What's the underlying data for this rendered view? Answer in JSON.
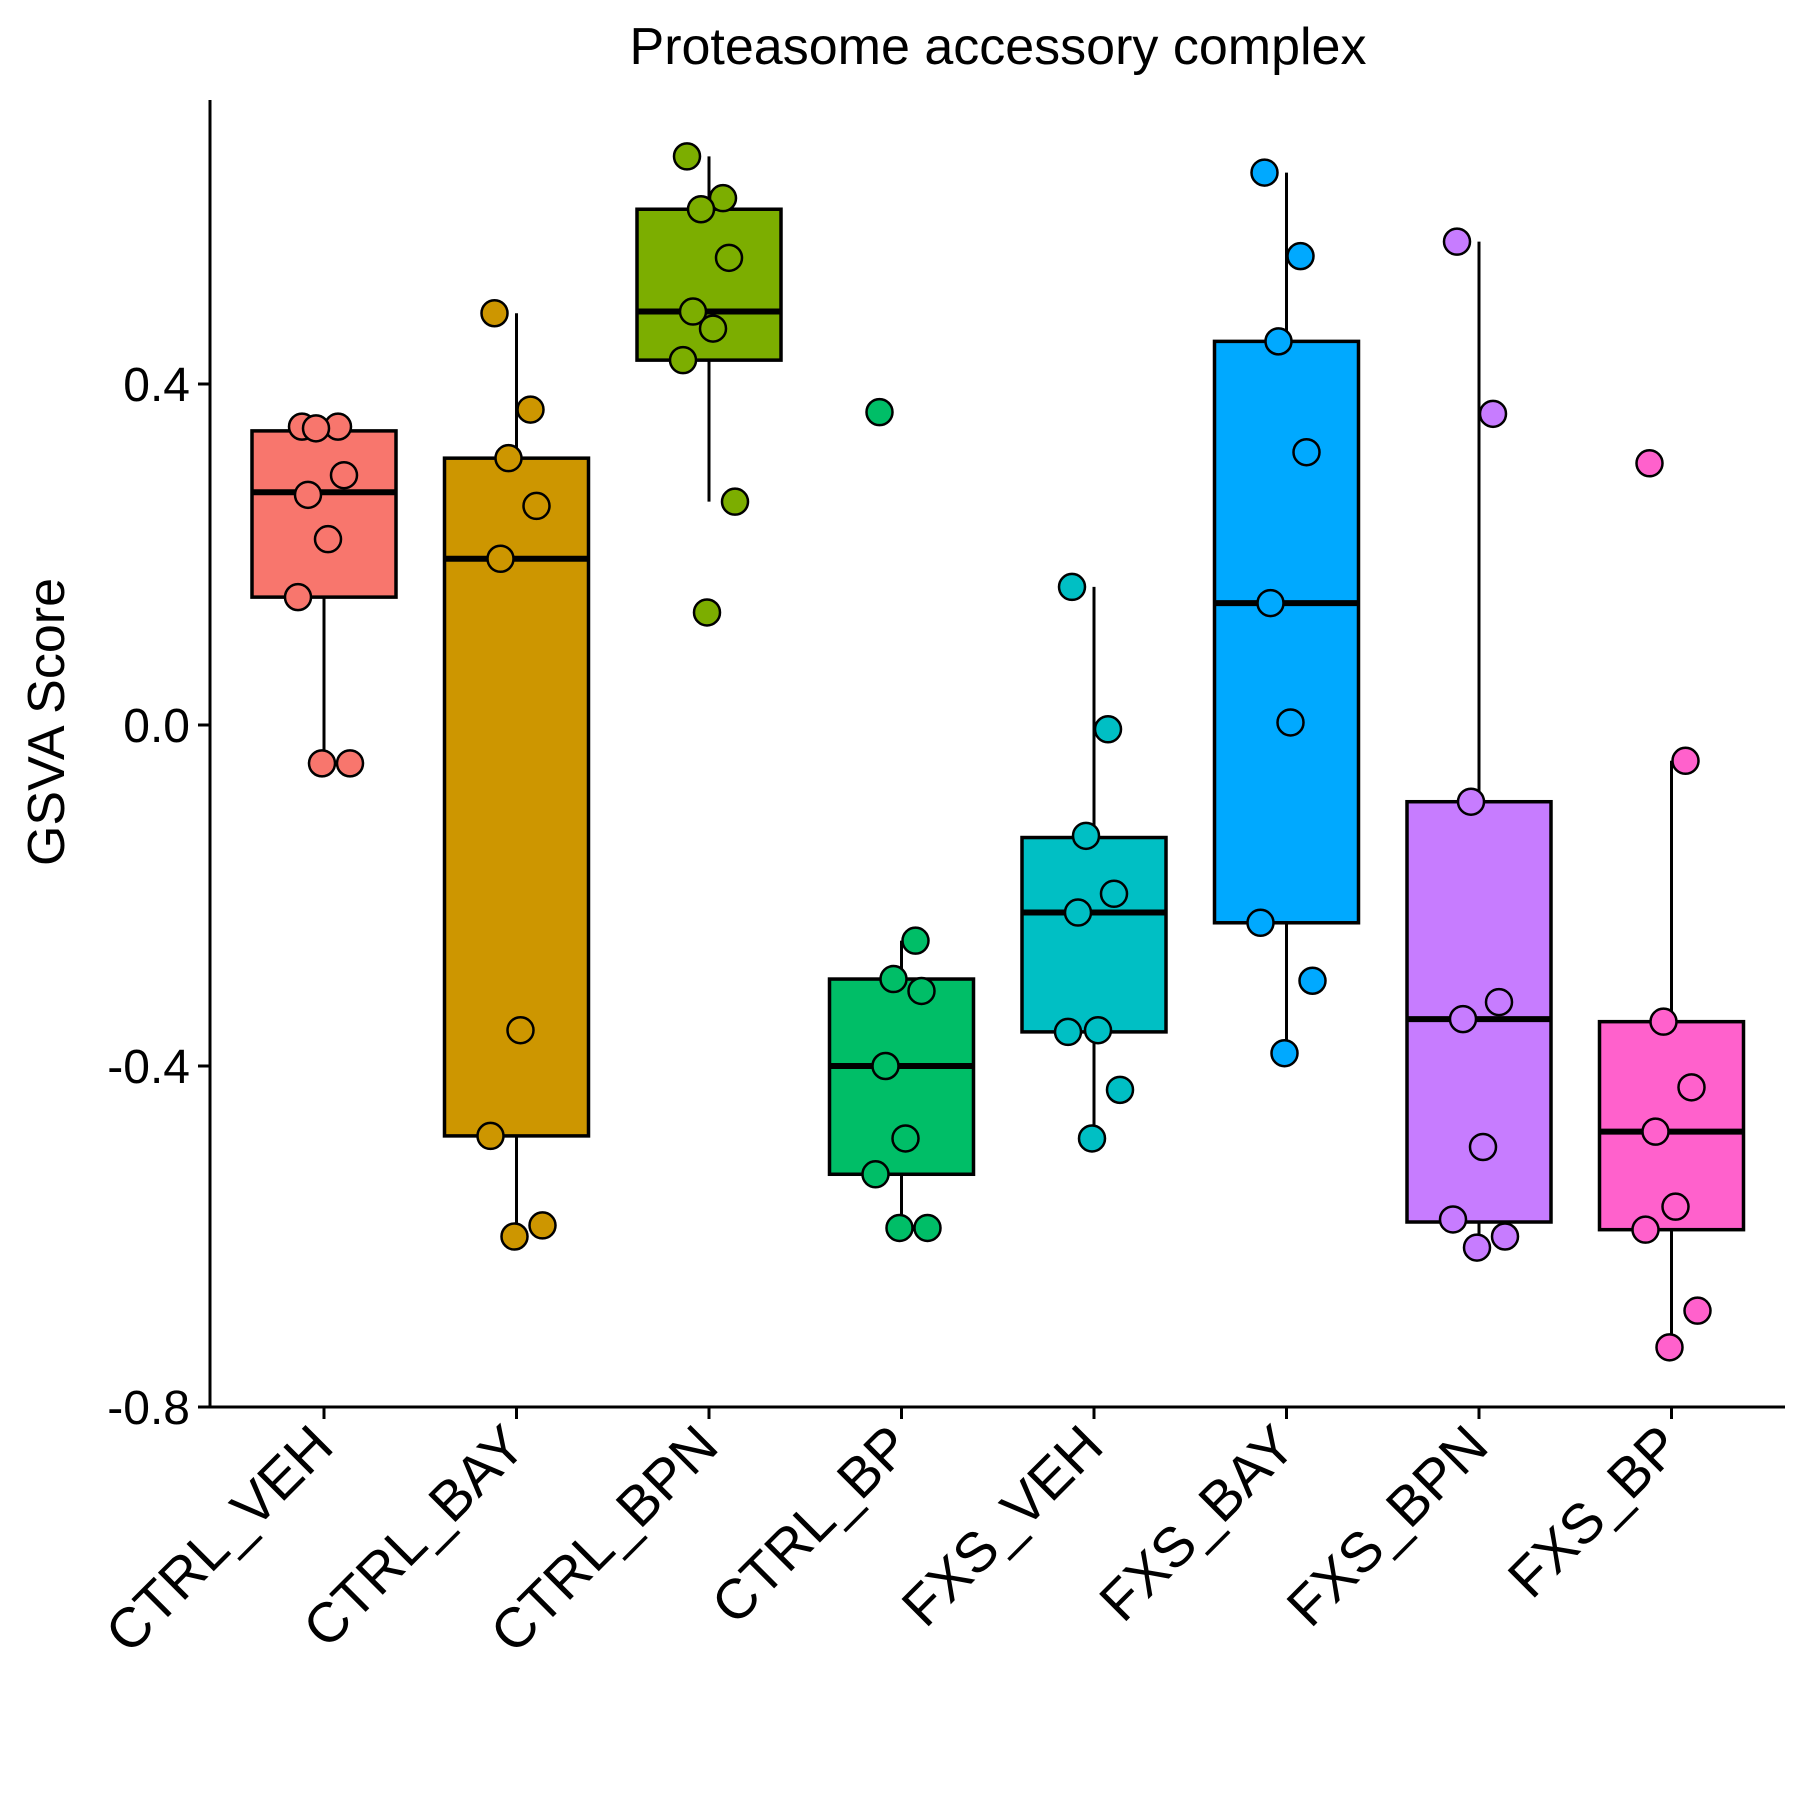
{
  "chart_data": {
    "type": "boxplot",
    "title": "Proteasome accessory complex",
    "ylabel": "GSVA Score",
    "xlabel": "",
    "ylim": [
      -0.8,
      0.73
    ],
    "yticks": [
      "-0.8",
      "-0.4",
      "0.0",
      "0.4"
    ],
    "yticks_values": [
      -0.8,
      -0.4,
      0.0,
      0.4
    ],
    "grid": false,
    "legend": "none",
    "categories": [
      "CTRL_VEH",
      "CTRL_BAY",
      "CTRL_BPN",
      "CTRL_BP",
      "FXS_VEH",
      "FXS_BAY",
      "FXS_BPN",
      "FXS_BP"
    ],
    "groups": [
      {
        "name": "CTRL_VEH",
        "color": "#F8766D",
        "box": {
          "whisker_low": -0.045,
          "q1": 0.15,
          "median": 0.273,
          "q3": 0.345,
          "whisker_high": 0.345
        },
        "points": [
          0.35,
          0.35,
          0.348,
          0.293,
          0.27,
          0.218,
          0.15,
          -0.045,
          -0.045
        ]
      },
      {
        "name": "CTRL_BAY",
        "color": "#CD9600",
        "box": {
          "whisker_low": -0.6,
          "q1": -0.482,
          "median": 0.195,
          "q3": 0.313,
          "whisker_high": 0.483
        },
        "points": [
          0.483,
          0.37,
          0.313,
          0.257,
          0.195,
          -0.358,
          -0.482,
          -0.587,
          -0.6
        ]
      },
      {
        "name": "CTRL_BPN",
        "color": "#7CAE00",
        "box": {
          "whisker_low": 0.262,
          "q1": 0.428,
          "median": 0.485,
          "q3": 0.605,
          "whisker_high": 0.667
        },
        "points": [
          0.667,
          0.618,
          0.605,
          0.548,
          0.485,
          0.465,
          0.428,
          0.262,
          0.132
        ]
      },
      {
        "name": "CTRL_BP",
        "color": "#00BE67",
        "box": {
          "whisker_low": -0.59,
          "q1": -0.527,
          "median": -0.4,
          "q3": -0.298,
          "whisker_high": -0.253
        },
        "points": [
          0.367,
          -0.253,
          -0.298,
          -0.312,
          -0.4,
          -0.485,
          -0.527,
          -0.59,
          -0.59
        ]
      },
      {
        "name": "FXS_VEH",
        "color": "#00BFC4",
        "box": {
          "whisker_low": -0.485,
          "q1": -0.36,
          "median": -0.22,
          "q3": -0.132,
          "whisker_high": 0.162
        },
        "points": [
          0.162,
          -0.005,
          -0.13,
          -0.198,
          -0.22,
          -0.358,
          -0.36,
          -0.428,
          -0.485
        ]
      },
      {
        "name": "FXS_BAY",
        "color": "#00A9FF",
        "box": {
          "whisker_low": -0.385,
          "q1": -0.232,
          "median": 0.143,
          "q3": 0.45,
          "whisker_high": 0.648
        },
        "points": [
          0.648,
          0.55,
          0.45,
          0.32,
          0.143,
          0.003,
          -0.232,
          -0.3,
          -0.385
        ]
      },
      {
        "name": "FXS_BPN",
        "color": "#C77CFF",
        "box": {
          "whisker_low": -0.613,
          "q1": -0.583,
          "median": -0.345,
          "q3": -0.09,
          "whisker_high": 0.567
        },
        "points": [
          0.567,
          0.365,
          -0.09,
          -0.325,
          -0.345,
          -0.495,
          -0.58,
          -0.6,
          -0.613
        ]
      },
      {
        "name": "FXS_BP",
        "color": "#FF61CC",
        "box": {
          "whisker_low": -0.73,
          "q1": -0.592,
          "median": -0.477,
          "q3": -0.348,
          "whisker_high": -0.042
        },
        "points": [
          0.307,
          -0.042,
          -0.348,
          -0.425,
          -0.477,
          -0.565,
          -0.592,
          -0.687,
          -0.73
        ]
      }
    ]
  }
}
